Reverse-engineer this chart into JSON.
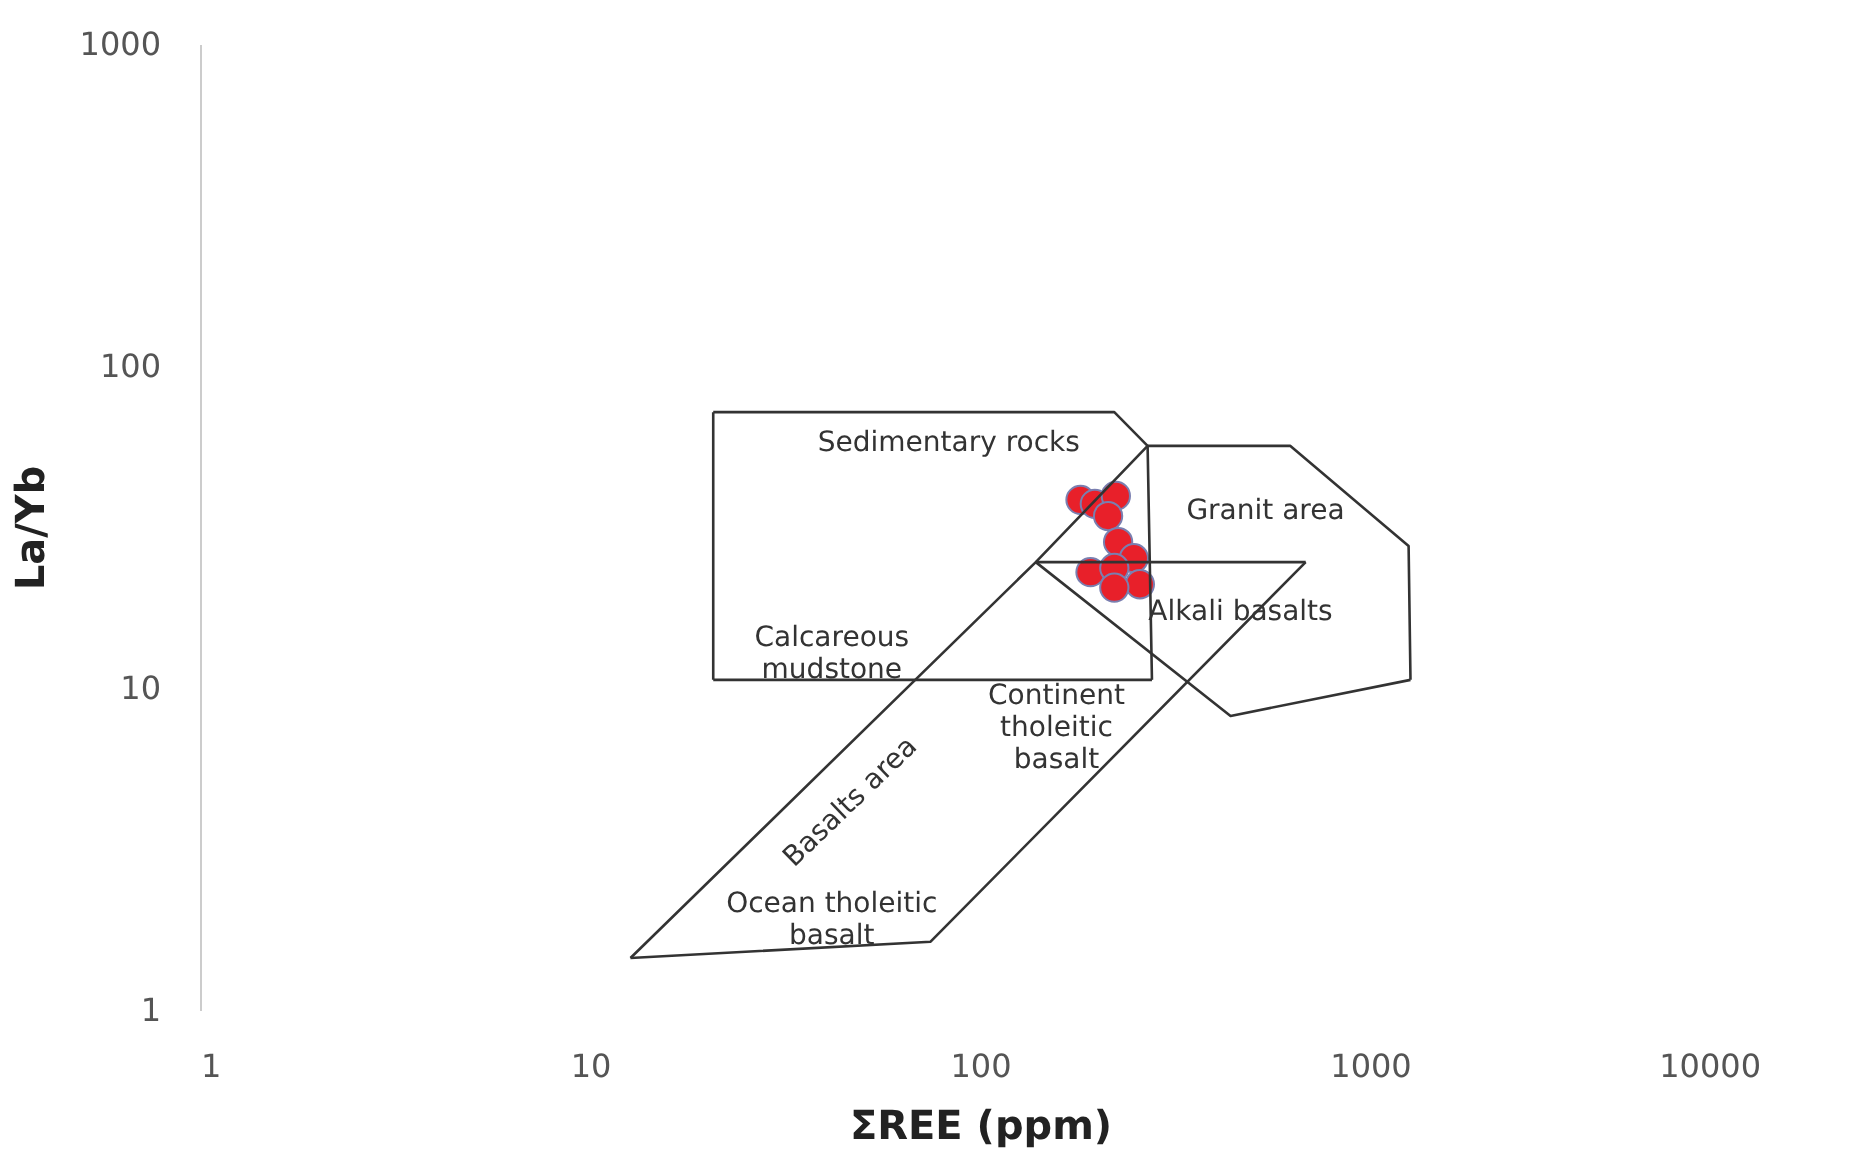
{
  "chart_data": {
    "type": "scatter",
    "xlabel": "ΣREE (ppm)",
    "ylabel": "La/Yb",
    "log": "xy",
    "grid": false,
    "xlim": [
      1,
      10000
    ],
    "xticks": [
      1,
      10,
      100,
      1000,
      10000
    ],
    "ylim": [
      1,
      1000
    ],
    "yticks": [
      1,
      10,
      100,
      1000
    ],
    "series": [
      {
        "marker": "circle",
        "color": "#e8202a",
        "x": [
          181,
          197,
          223,
          213,
          226,
          248,
          192,
          221,
          257,
          221
        ],
        "values": [
          38.4,
          37.3,
          39.5,
          34.2,
          28.4,
          25.3,
          22.9,
          23.6,
          21.0,
          20.5
        ]
      },
      {
        "type": "line",
        "marker": "none",
        "line_style": "solid",
        "color": "#333333",
        "x": [
          20.7,
          221,
          269,
          276
        ],
        "values": [
          71.9,
          71.9,
          56.5,
          10.6
        ]
      },
      {
        "type": "line",
        "marker": "none",
        "line_style": "solid",
        "color": "#333333",
        "x": [
          20.7,
          276
        ],
        "values": [
          10.6,
          10.6
        ]
      },
      {
        "type": "line",
        "marker": "none",
        "line_style": "solid",
        "color": "#333333",
        "x": [
          20.7,
          20.7
        ],
        "values": [
          10.6,
          71.9
        ]
      },
      {
        "type": "line",
        "marker": "none",
        "line_style": "solid",
        "color": "#333333",
        "x": [
          139,
          269,
          624,
          1256,
          1270
        ],
        "values": [
          24.6,
          56.5,
          56.5,
          27.6,
          10.6
        ]
      },
      {
        "type": "line",
        "marker": "none",
        "line_style": "solid",
        "color": "#333333",
        "x": [
          139,
          439,
          1270
        ],
        "values": [
          24.6,
          8.19,
          10.6
        ]
      },
      {
        "type": "line",
        "marker": "none",
        "line_style": "solid",
        "color": "#333333",
        "x": [
          12.7,
          139,
          684
        ],
        "values": [
          1.45,
          24.6,
          24.6
        ]
      },
      {
        "type": "line",
        "marker": "none",
        "line_style": "solid",
        "color": "#333333",
        "x": [
          12.7,
          74.7,
          684
        ],
        "values": [
          1.45,
          1.63,
          24.6
        ]
      }
    ],
    "annotations": [
      "Sedimentary rocks",
      "Granit area",
      "Alkali basalts",
      "Calcareous\nmudstone",
      "Continent\ntholeitic\nbasalt",
      "Basalts area",
      "Ocean tholeitic\nbasalt"
    ]
  }
}
